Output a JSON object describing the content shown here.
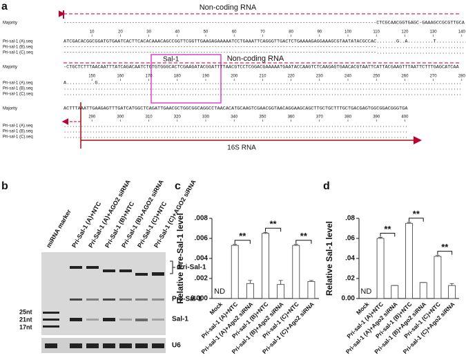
{
  "panel_a": {
    "label": "a",
    "majority_label": "Majority",
    "top_arrow_label": "Non-coding RNA",
    "sal_label": "Sal-1",
    "mid_arrow_label": "Non-coding RNA",
    "bottom_arrow_label": "16S RNA",
    "blocks": [
      {
        "majority": "--------------------------------------------------------------------------------------------------------------CTCGCAACGGTGAGC-GAAAGCCGCGTTGCA",
        "ruler": [
          10,
          20,
          30,
          40,
          50,
          60,
          70,
          80,
          90,
          100,
          110,
          120,
          130,
          140
        ],
        "rows": [
          {
            "name": "Pri-sal-1 (A).seq",
            "seq": "ATCGACACGGCGGATGTGAATCACTTCACACAAACAGCCGGTTCGGTTGAAGAGAAAAATCCTGAAATTCAGGGTTGACTCTGAAAAGAGGAAAGCGTAATATACGCCAC.......G..A.........T...........C..."
          },
          {
            "name": "Pri-sal-1 (B).seq",
            "seq": "--------------------------------------------------------------------------------------------------------------..............................."
          },
          {
            "name": "Pri-sal-1 (C).seq",
            "seq": "--------------------------------------------------------------------------------------------------------------..............................."
          }
        ]
      },
      {
        "majority": "-CTGCTCTTTAACAATTTATCAGACAATCTGTGTGGGCACTCGAAGATACGGATTTTAACGTCCTCGGACGAAAAATGAATACCAAGTCTCAAGAGTGAACACGTAATTCATTACGAAGTTTAATTCTTTGAGCATCAA",
        "ruler": [
          150,
          160,
          170,
          180,
          190,
          200,
          210,
          220,
          230,
          240,
          250,
          260,
          270,
          280
        ],
        "rows": [
          {
            "name": "Pri-sal-1 (A).seq",
            "seq": "A..........G................................................................................................................................"
          },
          {
            "name": "Pri-sal-1 (B).seq",
            "seq": "............................................................................................................................................"
          },
          {
            "name": "Pri-sal-1 (C).seq",
            "seq": "............................................................................................................................................"
          }
        ]
      },
      {
        "majority": "ACTTTAAATTGAAGAGTTTGATCATGGCTCAGATTGAACGCTGGCGGCAGGCCTAACACATGCAAGTCGAACGGTAACAGGAAGCAGCTTGCTGCTTTGCTGACGAGTGGCGGACGGGTGA",
        "ruler": [
          290,
          300,
          310,
          320,
          330,
          340,
          350,
          360,
          370,
          380,
          390,
          400
        ],
        "rows": [
          {
            "name": "Pri-sal-1 (A).seq",
            "seq": "........................................................................................................................."
          },
          {
            "name": "Pri-sal-1 (B).seq",
            "seq": "........................................................................................................................."
          },
          {
            "name": "Pri-sal-1 (C).seq",
            "seq": "........................................................................................................................."
          }
        ]
      }
    ]
  },
  "panel_b": {
    "label": "b",
    "lanes": [
      "miRNA marker",
      "Pri-Sal-1 (A)+NTC",
      "Pri-Sal-1 (A)+AGO2 siRNA",
      "Pri-Sal-1 (B)+NTC",
      "Pri-Sal-1 (B)+AGO2 siRNA",
      "Pri-Sal-1 (C)+NTC",
      "Pri-Sal-1 (C)+AGO2 siRNA"
    ],
    "band_labels": [
      "Pri-Sal-1",
      "Pre-Sal-1",
      "Sal-1",
      "U6"
    ],
    "marker_labels": [
      "25nt",
      "21nt",
      "17nt"
    ]
  },
  "chart_data": [
    {
      "type": "bar",
      "panel_label": "c",
      "y_label": "Relative Pre-Sal-1 level",
      "categories": [
        "Mock",
        "Pri-sal-1 (A)+NTC",
        "Pri-sal-1 (A)+Ago2 siRNA",
        "Pri-sal-1 (B)+NTC",
        "Pri-sal-1 (B)+Ago2 siRNA",
        "Pri-sal-1 (C)+NTC",
        "Pri-sal-1 (C)+Ago2 siRNA"
      ],
      "values": [
        null,
        0.0053,
        0.0015,
        0.0065,
        0.0014,
        0.0053,
        0.0017
      ],
      "errors": [
        null,
        0.0001,
        0.0003,
        0.0001,
        0.0004,
        0.0001,
        0.0001
      ],
      "color": "#ffffff",
      "ylim": [
        0,
        0.008
      ],
      "yticks": [
        {
          "value": 0,
          "label": "0.000"
        },
        {
          "value": 0.002,
          "label": ".002"
        },
        {
          "value": 0.004,
          "label": ".004"
        },
        {
          "value": 0.006,
          "label": ".006"
        },
        {
          "value": 0.008,
          "label": ".008"
        }
      ],
      "annotations": {
        "mock": "ND",
        "significance": [
          "**",
          "**",
          "**"
        ]
      }
    },
    {
      "type": "bar",
      "panel_label": "d",
      "y_label": "Relative Sal-1 level",
      "categories": [
        "Mock",
        "Pri-sal-1 (A)+NTC",
        "Pri-sal-1 (A)+Ago2 siRNA",
        "Pri-sal-1 (B)+NTC",
        "Pri-sal-1 (B)+Ago2 siRNA",
        "Pri-sal-1 (C)+NTC",
        "Pri-sal-1 (C)+Ago2 siRNA"
      ],
      "values": [
        null,
        0.06,
        0.013,
        0.075,
        0.016,
        0.042,
        0.013
      ],
      "errors": [
        null,
        0.001,
        0,
        0.001,
        0,
        0.001,
        0.002
      ],
      "color": "#ffffff",
      "ylim": [
        0,
        0.08
      ],
      "yticks": [
        {
          "value": 0,
          "label": "0.00"
        },
        {
          "value": 0.02,
          "label": ".02"
        },
        {
          "value": 0.04,
          "label": ".04"
        },
        {
          "value": 0.06,
          "label": ".06"
        },
        {
          "value": 0.08,
          "label": ".08"
        }
      ],
      "annotations": {
        "mock": "ND",
        "significance": [
          "**",
          "**",
          "**"
        ]
      }
    }
  ]
}
